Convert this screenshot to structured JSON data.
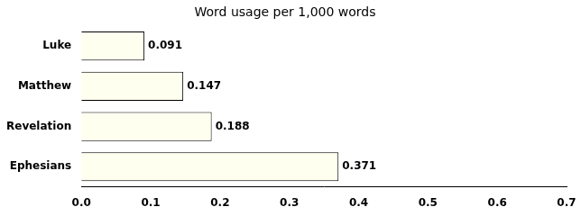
{
  "chart_data": {
    "type": "bar",
    "orientation": "horizontal",
    "title": "Word usage per 1,000 words",
    "categories": [
      "Ephesians",
      "Revelation",
      "Matthew",
      "Luke"
    ],
    "values": [
      0.371,
      0.188,
      0.147,
      0.091
    ],
    "color": "#FFFFF0",
    "xlim": [
      0.0,
      0.7
    ],
    "xticks": [
      {
        "value": 0,
        "label": "0.0"
      },
      0.1,
      0.2,
      0.3,
      0.4,
      0.5,
      0.6,
      0.7
    ],
    "grid": false,
    "data_labels": true
  }
}
